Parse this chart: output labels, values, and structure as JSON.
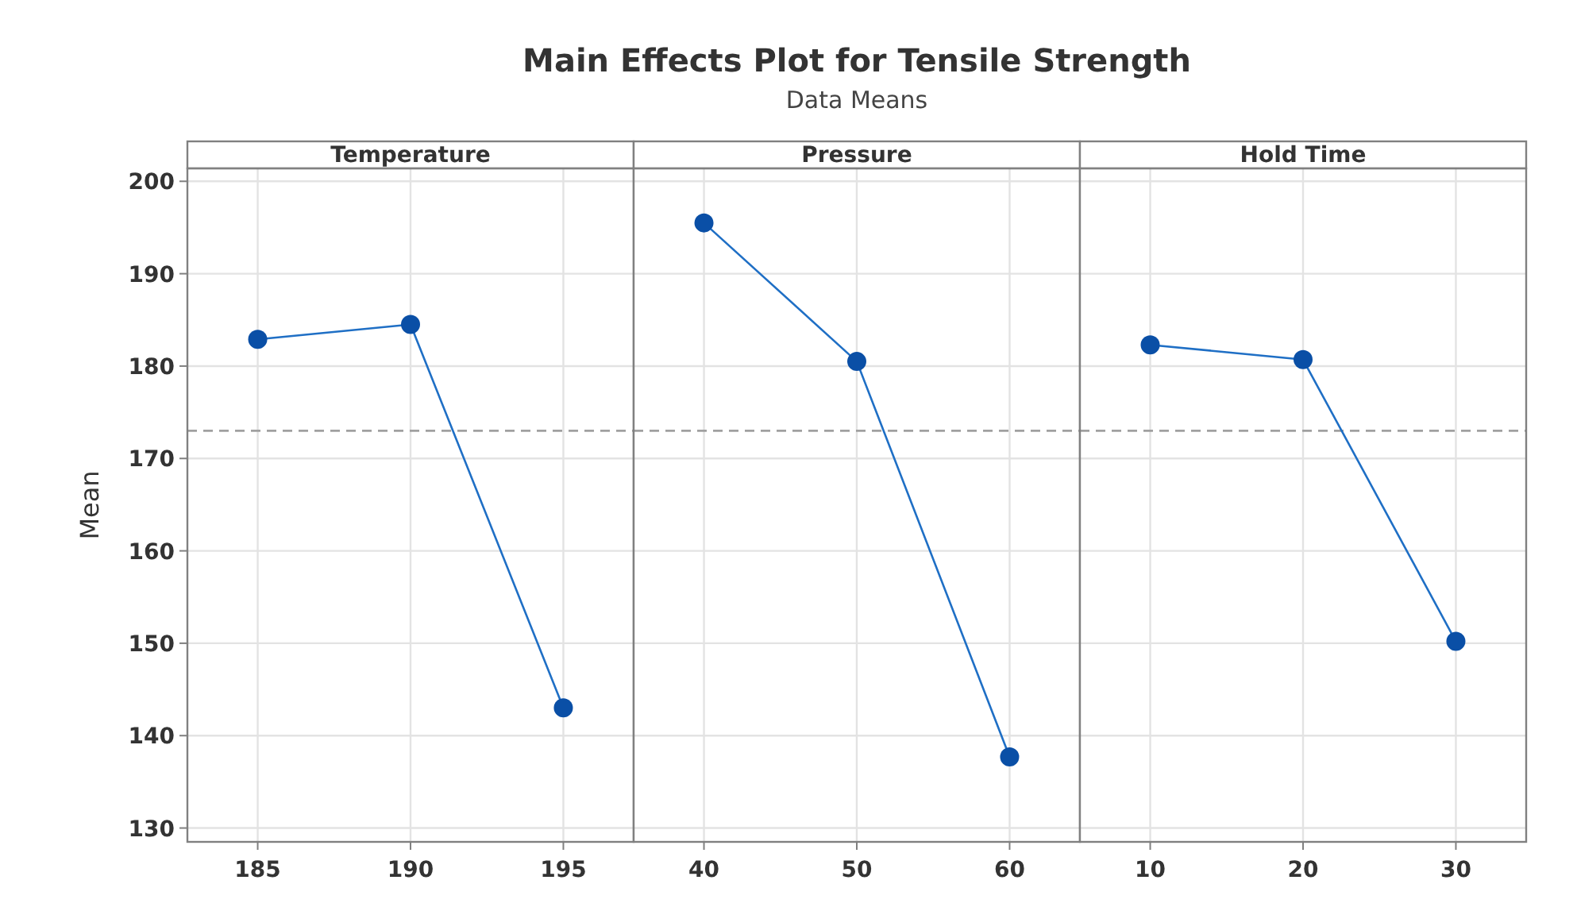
{
  "chart_data": [
    {
      "type": "line",
      "xlabel": "Temperature",
      "ylabel": "Mean",
      "categories": [
        "185",
        "190",
        "195"
      ],
      "series": [
        {
          "color": "#1f6fc5",
          "values": [
            182.9,
            184.5,
            143.0
          ]
        }
      ],
      "ylim": [
        128.5,
        201.4
      ],
      "yticks": [
        130,
        140,
        150,
        160,
        170,
        180,
        190,
        200
      ],
      "grid": true,
      "marker": "circle",
      "line_style": "solid",
      "ref_lines": [
        {
          "axis": "y",
          "value": 173.0,
          "color": "#a0a0a0",
          "line_style": "dashed"
        }
      ]
    },
    {
      "type": "line",
      "title": "Main Effects Plot for Tensile Strength",
      "subtitle": "Data Means",
      "xlabel": "Pressure",
      "categories": [
        "40",
        "50",
        "60"
      ],
      "series": [
        {
          "color": "#1f6fc5",
          "values": [
            195.5,
            180.5,
            137.7
          ]
        }
      ],
      "ylim": [
        128.5,
        201.4
      ],
      "yticks": [
        130,
        140,
        150,
        160,
        170,
        180,
        190,
        200
      ],
      "grid": true,
      "marker": "circle",
      "line_style": "solid",
      "tick_labels": "x",
      "ref_lines": [
        {
          "axis": "y",
          "value": 173.0,
          "color": "#a0a0a0",
          "line_style": "dashed"
        }
      ]
    },
    {
      "type": "line",
      "xlabel": "Hold Time",
      "categories": [
        "10",
        "20",
        "30"
      ],
      "series": [
        {
          "color": "#1f6fc5",
          "values": [
            182.3,
            180.7,
            150.2
          ]
        }
      ],
      "ylim": [
        128.5,
        201.4
      ],
      "yticks": [
        130,
        140,
        150,
        160,
        170,
        180,
        190,
        200
      ],
      "grid": true,
      "marker": "circle",
      "line_style": "solid",
      "tick_labels": "x",
      "ref_lines": [
        {
          "axis": "y",
          "value": 173.0,
          "color": "#a0a0a0",
          "line_style": "dashed"
        }
      ]
    }
  ]
}
